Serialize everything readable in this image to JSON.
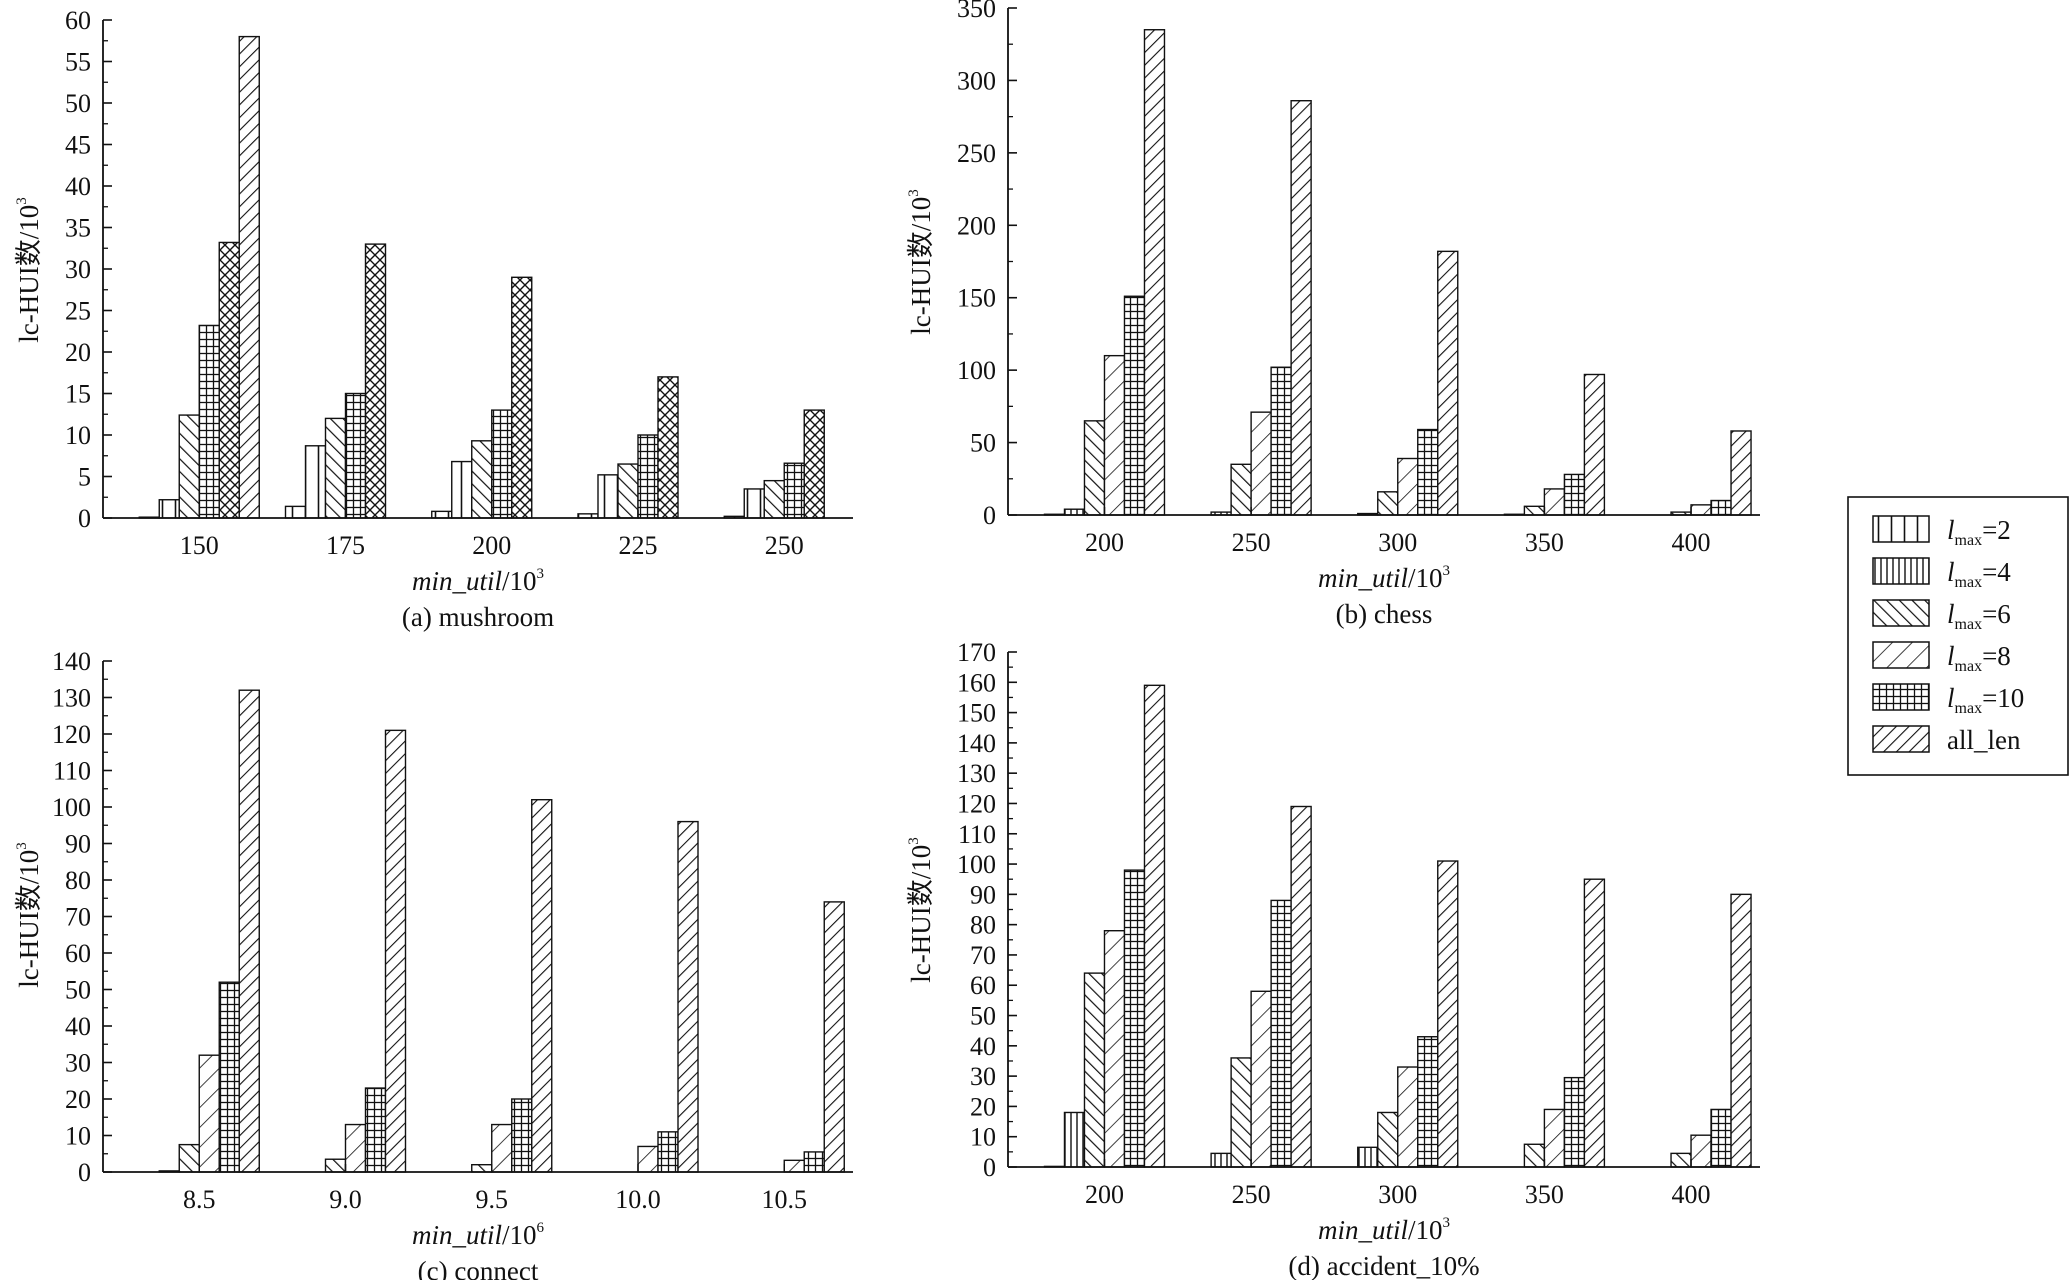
{
  "series_names": [
    "l_max=2",
    "l_max=4",
    "l_max=6",
    "l_max=8",
    "l_max=10",
    "all_len"
  ],
  "legend": {
    "items": [
      {
        "main": "l",
        "sub": "max",
        "rest": "=2",
        "pattern": "p-wide-vert"
      },
      {
        "main": "l",
        "sub": "max",
        "rest": "=4",
        "pattern": "p-vert"
      },
      {
        "main": "l",
        "sub": "max",
        "rest": "=6",
        "pattern": "p-back"
      },
      {
        "main": "l",
        "sub": "max",
        "rest": "=8",
        "pattern": "p-fwd-wide"
      },
      {
        "main": "l",
        "sub": "max",
        "rest": "=10",
        "pattern": "p-grid"
      },
      {
        "main": "all_len",
        "sub": "",
        "rest": "",
        "pattern": "p-fwd"
      }
    ]
  },
  "chart_data": [
    {
      "type": "bar",
      "caption": "(a) mushroom",
      "xlabel": "min_util/10",
      "xlabel_exp": "3",
      "ylabel": "lc-HUI数/10",
      "ylabel_exp": "3",
      "categories": [
        "150",
        "175",
        "200",
        "225",
        "250"
      ],
      "ylim": [
        0,
        60
      ],
      "yticks": [
        0,
        5,
        10,
        15,
        20,
        25,
        30,
        35,
        40,
        45,
        50,
        55,
        60
      ],
      "series": [
        {
          "values": [
            0.1,
            1.4,
            0.8,
            0.5,
            0.2
          ]
        },
        {
          "values": [
            2.2,
            8.7,
            6.8,
            5.2,
            3.5
          ]
        },
        {
          "values": [
            12.4,
            12.0,
            9.3,
            6.5,
            4.5
          ]
        },
        {
          "values": [
            23.2,
            15.0,
            13.0,
            10.0,
            6.6
          ]
        },
        {
          "values": [
            33.2,
            33.0,
            29.0,
            17.0,
            13.0
          ]
        },
        {
          "values": [
            58.0,
            null,
            null,
            null,
            null
          ]
        }
      ]
    },
    {
      "type": "bar",
      "caption": "(b) chess",
      "xlabel": "min_util/10",
      "xlabel_exp": "3",
      "ylabel": "lc-HUI数/10",
      "ylabel_exp": "3",
      "categories": [
        "200",
        "250",
        "300",
        "350",
        "400"
      ],
      "ylim": [
        0,
        350
      ],
      "yticks": [
        0,
        50,
        100,
        150,
        200,
        250,
        300,
        350
      ],
      "series": [
        {
          "values": [
            0.5,
            0.3,
            0.2,
            0.1,
            0.1
          ]
        },
        {
          "values": [
            4.0,
            2.0,
            1.0,
            0.5,
            0.3
          ]
        },
        {
          "values": [
            65,
            35,
            16,
            6,
            2
          ]
        },
        {
          "values": [
            110,
            71,
            39,
            18,
            7
          ]
        },
        {
          "values": [
            151,
            102,
            59,
            28,
            10
          ]
        },
        {
          "values": [
            335,
            286,
            182,
            97,
            58
          ]
        }
      ]
    },
    {
      "type": "bar",
      "caption": "(c) connect",
      "xlabel": "min_util/10",
      "xlabel_exp": "6",
      "ylabel": "lc-HUI数/10",
      "ylabel_exp": "3",
      "categories": [
        "8.5",
        "9.0",
        "9.5",
        "10.0",
        "10.5"
      ],
      "ylim": [
        0,
        140
      ],
      "yticks": [
        0,
        10,
        20,
        30,
        40,
        50,
        60,
        70,
        80,
        90,
        100,
        110,
        120,
        130,
        140
      ],
      "series": [
        {
          "values": [
            0,
            0,
            0,
            0,
            0
          ]
        },
        {
          "values": [
            0.3,
            0,
            0,
            0,
            0
          ]
        },
        {
          "values": [
            7.5,
            3.5,
            2.0,
            0,
            0
          ]
        },
        {
          "values": [
            32,
            13,
            13,
            7,
            3.2
          ]
        },
        {
          "values": [
            52,
            23,
            20,
            11,
            5.5
          ]
        },
        {
          "values": [
            132,
            121,
            102,
            96,
            74
          ]
        }
      ]
    },
    {
      "type": "bar",
      "caption": "(d) accident_10%",
      "xlabel": "min_util/10",
      "xlabel_exp": "3",
      "ylabel": "lc-HUI数/10",
      "ylabel_exp": "3",
      "categories": [
        "200",
        "250",
        "300",
        "350",
        "400"
      ],
      "ylim": [
        0,
        170
      ],
      "yticks": [
        0,
        10,
        20,
        30,
        40,
        50,
        60,
        70,
        80,
        90,
        100,
        110,
        120,
        130,
        140,
        150,
        160,
        170
      ],
      "series": [
        {
          "values": [
            0.2,
            0.1,
            0.1,
            0,
            0
          ]
        },
        {
          "values": [
            18,
            4.5,
            6.5,
            0,
            0
          ]
        },
        {
          "values": [
            64,
            36,
            18,
            7.5,
            4.5
          ]
        },
        {
          "values": [
            78,
            58,
            33,
            19,
            10.5
          ]
        },
        {
          "values": [
            98,
            88,
            43,
            29.5,
            19
          ]
        },
        {
          "values": [
            159,
            119,
            101,
            95,
            90
          ]
        }
      ]
    }
  ]
}
